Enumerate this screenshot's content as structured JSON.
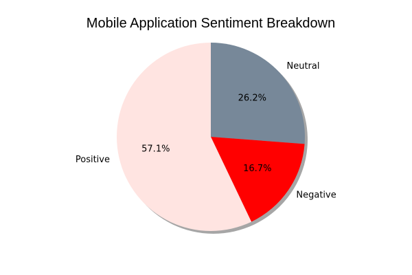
{
  "chart_data": {
    "type": "pie",
    "title": "Mobile Application Sentiment Breakdown",
    "slices": [
      {
        "label": "Neutral",
        "value": 26.2,
        "pct_label": "26.2%",
        "color": "#778899"
      },
      {
        "label": "Negative",
        "value": 16.7,
        "pct_label": "16.7%",
        "color": "#ff0000"
      },
      {
        "label": "Positive",
        "value": 57.1,
        "pct_label": "57.1%",
        "color": "#ffe4e1"
      }
    ],
    "start_angle_deg": 90,
    "direction": "clockwise",
    "shadow": true,
    "legend": "none"
  }
}
